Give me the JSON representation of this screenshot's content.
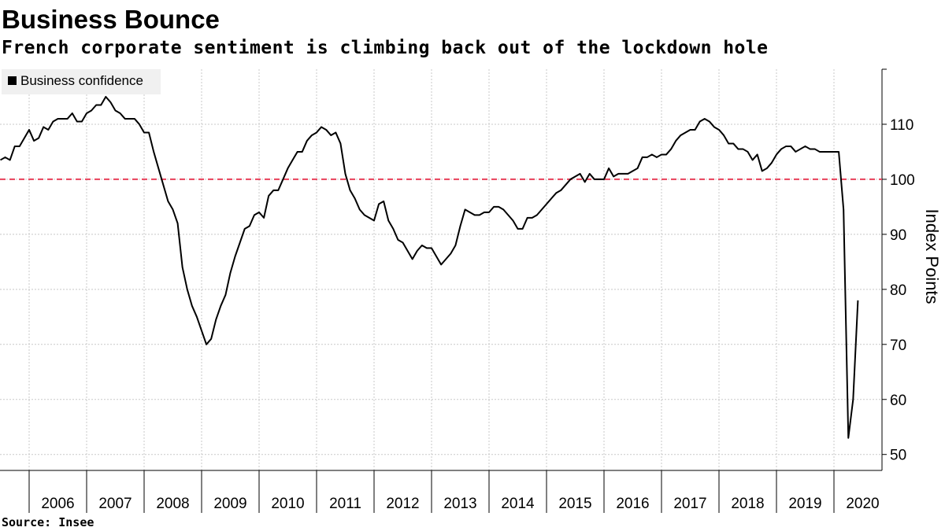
{
  "chart_data": {
    "type": "line",
    "title": "Business Bounce",
    "subtitle": "French corporate sentiment is climbing back out of the lockdown hole",
    "source": "Source: Insee",
    "y_label": "Index Points",
    "x": [
      "2005-07",
      "2005-08",
      "2005-09",
      "2005-10",
      "2005-11",
      "2005-12",
      "2006-01",
      "2006-02",
      "2006-03",
      "2006-04",
      "2006-05",
      "2006-06",
      "2006-07",
      "2006-08",
      "2006-09",
      "2006-10",
      "2006-11",
      "2006-12",
      "2007-01",
      "2007-02",
      "2007-03",
      "2007-04",
      "2007-05",
      "2007-06",
      "2007-07",
      "2007-08",
      "2007-09",
      "2007-10",
      "2007-11",
      "2007-12",
      "2008-01",
      "2008-02",
      "2008-03",
      "2008-04",
      "2008-05",
      "2008-06",
      "2008-07",
      "2008-08",
      "2008-09",
      "2008-10",
      "2008-11",
      "2008-12",
      "2009-01",
      "2009-02",
      "2009-03",
      "2009-04",
      "2009-05",
      "2009-06",
      "2009-07",
      "2009-08",
      "2009-09",
      "2009-10",
      "2009-11",
      "2009-12",
      "2010-01",
      "2010-02",
      "2010-03",
      "2010-04",
      "2010-05",
      "2010-06",
      "2010-07",
      "2010-08",
      "2010-09",
      "2010-10",
      "2010-11",
      "2010-12",
      "2011-01",
      "2011-02",
      "2011-03",
      "2011-04",
      "2011-05",
      "2011-06",
      "2011-07",
      "2011-08",
      "2011-09",
      "2011-10",
      "2011-11",
      "2011-12",
      "2012-01",
      "2012-02",
      "2012-03",
      "2012-04",
      "2012-05",
      "2012-06",
      "2012-07",
      "2012-08",
      "2012-09",
      "2012-10",
      "2012-11",
      "2012-12",
      "2013-01",
      "2013-02",
      "2013-03",
      "2013-04",
      "2013-05",
      "2013-06",
      "2013-07",
      "2013-08",
      "2013-09",
      "2013-10",
      "2013-11",
      "2013-12",
      "2014-01",
      "2014-02",
      "2014-03",
      "2014-04",
      "2014-05",
      "2014-06",
      "2014-07",
      "2014-08",
      "2014-09",
      "2014-10",
      "2014-11",
      "2014-12",
      "2015-01",
      "2015-02",
      "2015-03",
      "2015-04",
      "2015-05",
      "2015-06",
      "2015-07",
      "2015-08",
      "2015-09",
      "2015-10",
      "2015-11",
      "2015-12",
      "2016-01",
      "2016-02",
      "2016-03",
      "2016-04",
      "2016-05",
      "2016-06",
      "2016-07",
      "2016-08",
      "2016-09",
      "2016-10",
      "2016-11",
      "2016-12",
      "2017-01",
      "2017-02",
      "2017-03",
      "2017-04",
      "2017-05",
      "2017-06",
      "2017-07",
      "2017-08",
      "2017-09",
      "2017-10",
      "2017-11",
      "2017-12",
      "2018-01",
      "2018-02",
      "2018-03",
      "2018-04",
      "2018-05",
      "2018-06",
      "2018-07",
      "2018-08",
      "2018-09",
      "2018-10",
      "2018-11",
      "2018-12",
      "2019-01",
      "2019-02",
      "2019-03",
      "2019-04",
      "2019-05",
      "2019-06",
      "2019-07",
      "2019-08",
      "2019-09",
      "2019-10",
      "2019-11",
      "2019-12",
      "2020-01",
      "2020-02",
      "2020-03",
      "2020-04",
      "2020-05",
      "2020-06"
    ],
    "series": [
      {
        "name": "Business confidence",
        "color": "#000000",
        "values": [
          103.5,
          104,
          103.5,
          106,
          106,
          107.5,
          109,
          107,
          107.5,
          109.5,
          109,
          110.5,
          111,
          111,
          111,
          112,
          110.5,
          110.5,
          112,
          112.5,
          113.5,
          113.5,
          115,
          114,
          112.5,
          112,
          111,
          111,
          111,
          110,
          108.5,
          108.5,
          105,
          102,
          99,
          96,
          94.5,
          92,
          84,
          80,
          77,
          75,
          72.5,
          70,
          71,
          74.5,
          77,
          79,
          83,
          86,
          88.5,
          91,
          91.5,
          93.5,
          94,
          93,
          97,
          98,
          98,
          100,
          102,
          103.5,
          105,
          105,
          107,
          108,
          108.5,
          109.5,
          109,
          108,
          108.5,
          106.5,
          101,
          98,
          96.5,
          94.5,
          93.5,
          93,
          92.5,
          95.5,
          96,
          92.5,
          91,
          89,
          88.5,
          87,
          85.5,
          87,
          88,
          87.5,
          87.5,
          86,
          84.5,
          85.5,
          86.5,
          88,
          91.5,
          94.5,
          94,
          93.5,
          93.5,
          94,
          94,
          95,
          95,
          94.5,
          93.5,
          92.5,
          91,
          91,
          93,
          93,
          93.5,
          94.5,
          95.5,
          96.5,
          97.5,
          98,
          99,
          100,
          100.5,
          101,
          99.5,
          101,
          100,
          100,
          100,
          102,
          100.5,
          101,
          101,
          101,
          101.5,
          102,
          104,
          104,
          104.5,
          104,
          104.5,
          104.5,
          105.5,
          107,
          108,
          108.5,
          109,
          109,
          110.5,
          111,
          110.5,
          109.5,
          109,
          108,
          106.5,
          106.5,
          105.5,
          105.5,
          105,
          103.5,
          104.5,
          101.5,
          102,
          103,
          104.5,
          105.5,
          106,
          106,
          105,
          105.5,
          106,
          105.5,
          105.5,
          105,
          105,
          105,
          105,
          105,
          94.5,
          53,
          60,
          78
        ]
      }
    ],
    "xticks": [
      2006,
      2007,
      2008,
      2009,
      2010,
      2011,
      2012,
      2013,
      2014,
      2015,
      2016,
      2017,
      2018,
      2019,
      2020
    ],
    "ylim": [
      47.1,
      120
    ],
    "yticks": [
      50,
      60,
      70,
      80,
      90,
      100,
      110
    ],
    "reference_line": {
      "value": 100,
      "color": "#e8405a"
    },
    "grid": true,
    "legend": "top-left"
  }
}
